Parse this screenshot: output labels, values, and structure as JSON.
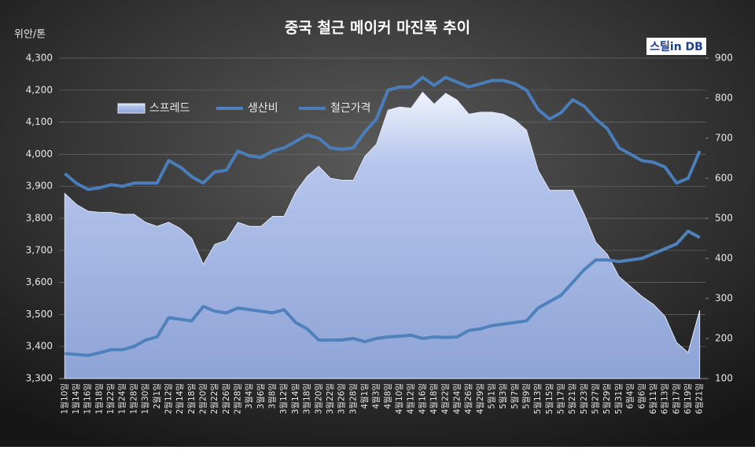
{
  "chart_data": {
    "type": "line",
    "title": "중국 철근 메이커 마진폭 추이",
    "y_label": "위안/톤",
    "logo": "스틸in DB",
    "categories": [
      "1월10일",
      "1월14일",
      "1월16일",
      "1월18일",
      "1월22일",
      "1월24일",
      "1월28일",
      "1월30일",
      "2월1일",
      "2월12일",
      "2월14일",
      "2월18일",
      "2월20일",
      "2월22일",
      "2월26일",
      "2월28일",
      "3월4일",
      "3월6일",
      "3월8일",
      "3월12일",
      "3월14일",
      "3월18일",
      "3월20일",
      "3월22일",
      "3월26일",
      "3월28일",
      "4월1일",
      "4월3일",
      "4월8일",
      "4월10일",
      "4월12일",
      "4월16일",
      "4월18일",
      "4월22일",
      "4월24일",
      "4월26일",
      "4월29일",
      "5월1일",
      "5월3일",
      "5월7일",
      "5월9일",
      "5월13일",
      "5월15일",
      "5월17일",
      "5월21일",
      "5월23일",
      "5월27일",
      "5월29일",
      "5월31일",
      "6월4일",
      "6월6일",
      "6월11일",
      "6월13일",
      "6월17일",
      "6월19일",
      "6월21일"
    ],
    "series": [
      {
        "name": "스프레드",
        "kind": "area",
        "axis": "y2",
        "color": "#a9bbe6",
        "values": [
          562,
          535,
          518,
          515,
          515,
          510,
          510,
          490,
          480,
          490,
          475,
          450,
          385,
          435,
          445,
          490,
          480,
          480,
          505,
          505,
          565,
          605,
          630,
          600,
          595,
          595,
          655,
          685,
          770,
          778,
          775,
          815,
          785,
          812,
          795,
          760,
          765,
          765,
          760,
          745,
          720,
          620,
          570,
          570,
          570,
          510,
          440,
          410,
          355,
          330,
          305,
          285,
          255,
          190,
          165,
          270
        ]
      },
      {
        "name": "생산비",
        "axis": "y",
        "color": "#4f81bd",
        "values": [
          3378,
          3375,
          3372,
          3380,
          3390,
          3390,
          3400,
          3420,
          3430,
          3490,
          3485,
          3480,
          3525,
          3510,
          3505,
          3520,
          3515,
          3510,
          3505,
          3515,
          3475,
          3455,
          3420,
          3420,
          3420,
          3425,
          3415,
          3425,
          3430,
          3432,
          3435,
          3425,
          3430,
          3428,
          3430,
          3450,
          3455,
          3465,
          3470,
          3475,
          3480,
          3520,
          3540,
          3560,
          3600,
          3640,
          3670,
          3670,
          3665,
          3670,
          3675,
          3690,
          3705,
          3720,
          3760,
          3740
        ]
      },
      {
        "name": "철근가격",
        "axis": "y",
        "color": "#4a7ebb",
        "values": [
          3940,
          3910,
          3890,
          3895,
          3905,
          3900,
          3910,
          3910,
          3910,
          3980,
          3960,
          3930,
          3910,
          3945,
          3950,
          4010,
          3995,
          3990,
          4010,
          4020,
          4040,
          4060,
          4050,
          4020,
          4015,
          4020,
          4070,
          4110,
          4200,
          4210,
          4210,
          4240,
          4215,
          4240,
          4225,
          4210,
          4220,
          4230,
          4230,
          4220,
          4200,
          4140,
          4110,
          4130,
          4170,
          4150,
          4110,
          4080,
          4020,
          4000,
          3980,
          3975,
          3960,
          3910,
          3925,
          4010
        ]
      }
    ],
    "ylim": [
      3300,
      4300
    ],
    "yticks": [
      {
        "value": 3300,
        "label": "3,300"
      },
      {
        "value": 3400,
        "label": "3,400"
      },
      {
        "value": 3500,
        "label": "3,500"
      },
      {
        "value": 3600,
        "label": "3,600"
      },
      {
        "value": 3700,
        "label": "3,700"
      },
      {
        "value": 3800,
        "label": "3,800"
      },
      {
        "value": 3900,
        "label": "3,900"
      },
      {
        "value": 4000,
        "label": "4,000"
      },
      {
        "value": 4100,
        "label": "4,100"
      },
      {
        "value": 4200,
        "label": "4,200"
      },
      {
        "value": 4300,
        "label": "4,300"
      }
    ],
    "y2lim": [
      100,
      900
    ],
    "y2ticks": [
      100,
      200,
      300,
      400,
      500,
      600,
      700,
      800,
      900
    ],
    "grid": true
  }
}
